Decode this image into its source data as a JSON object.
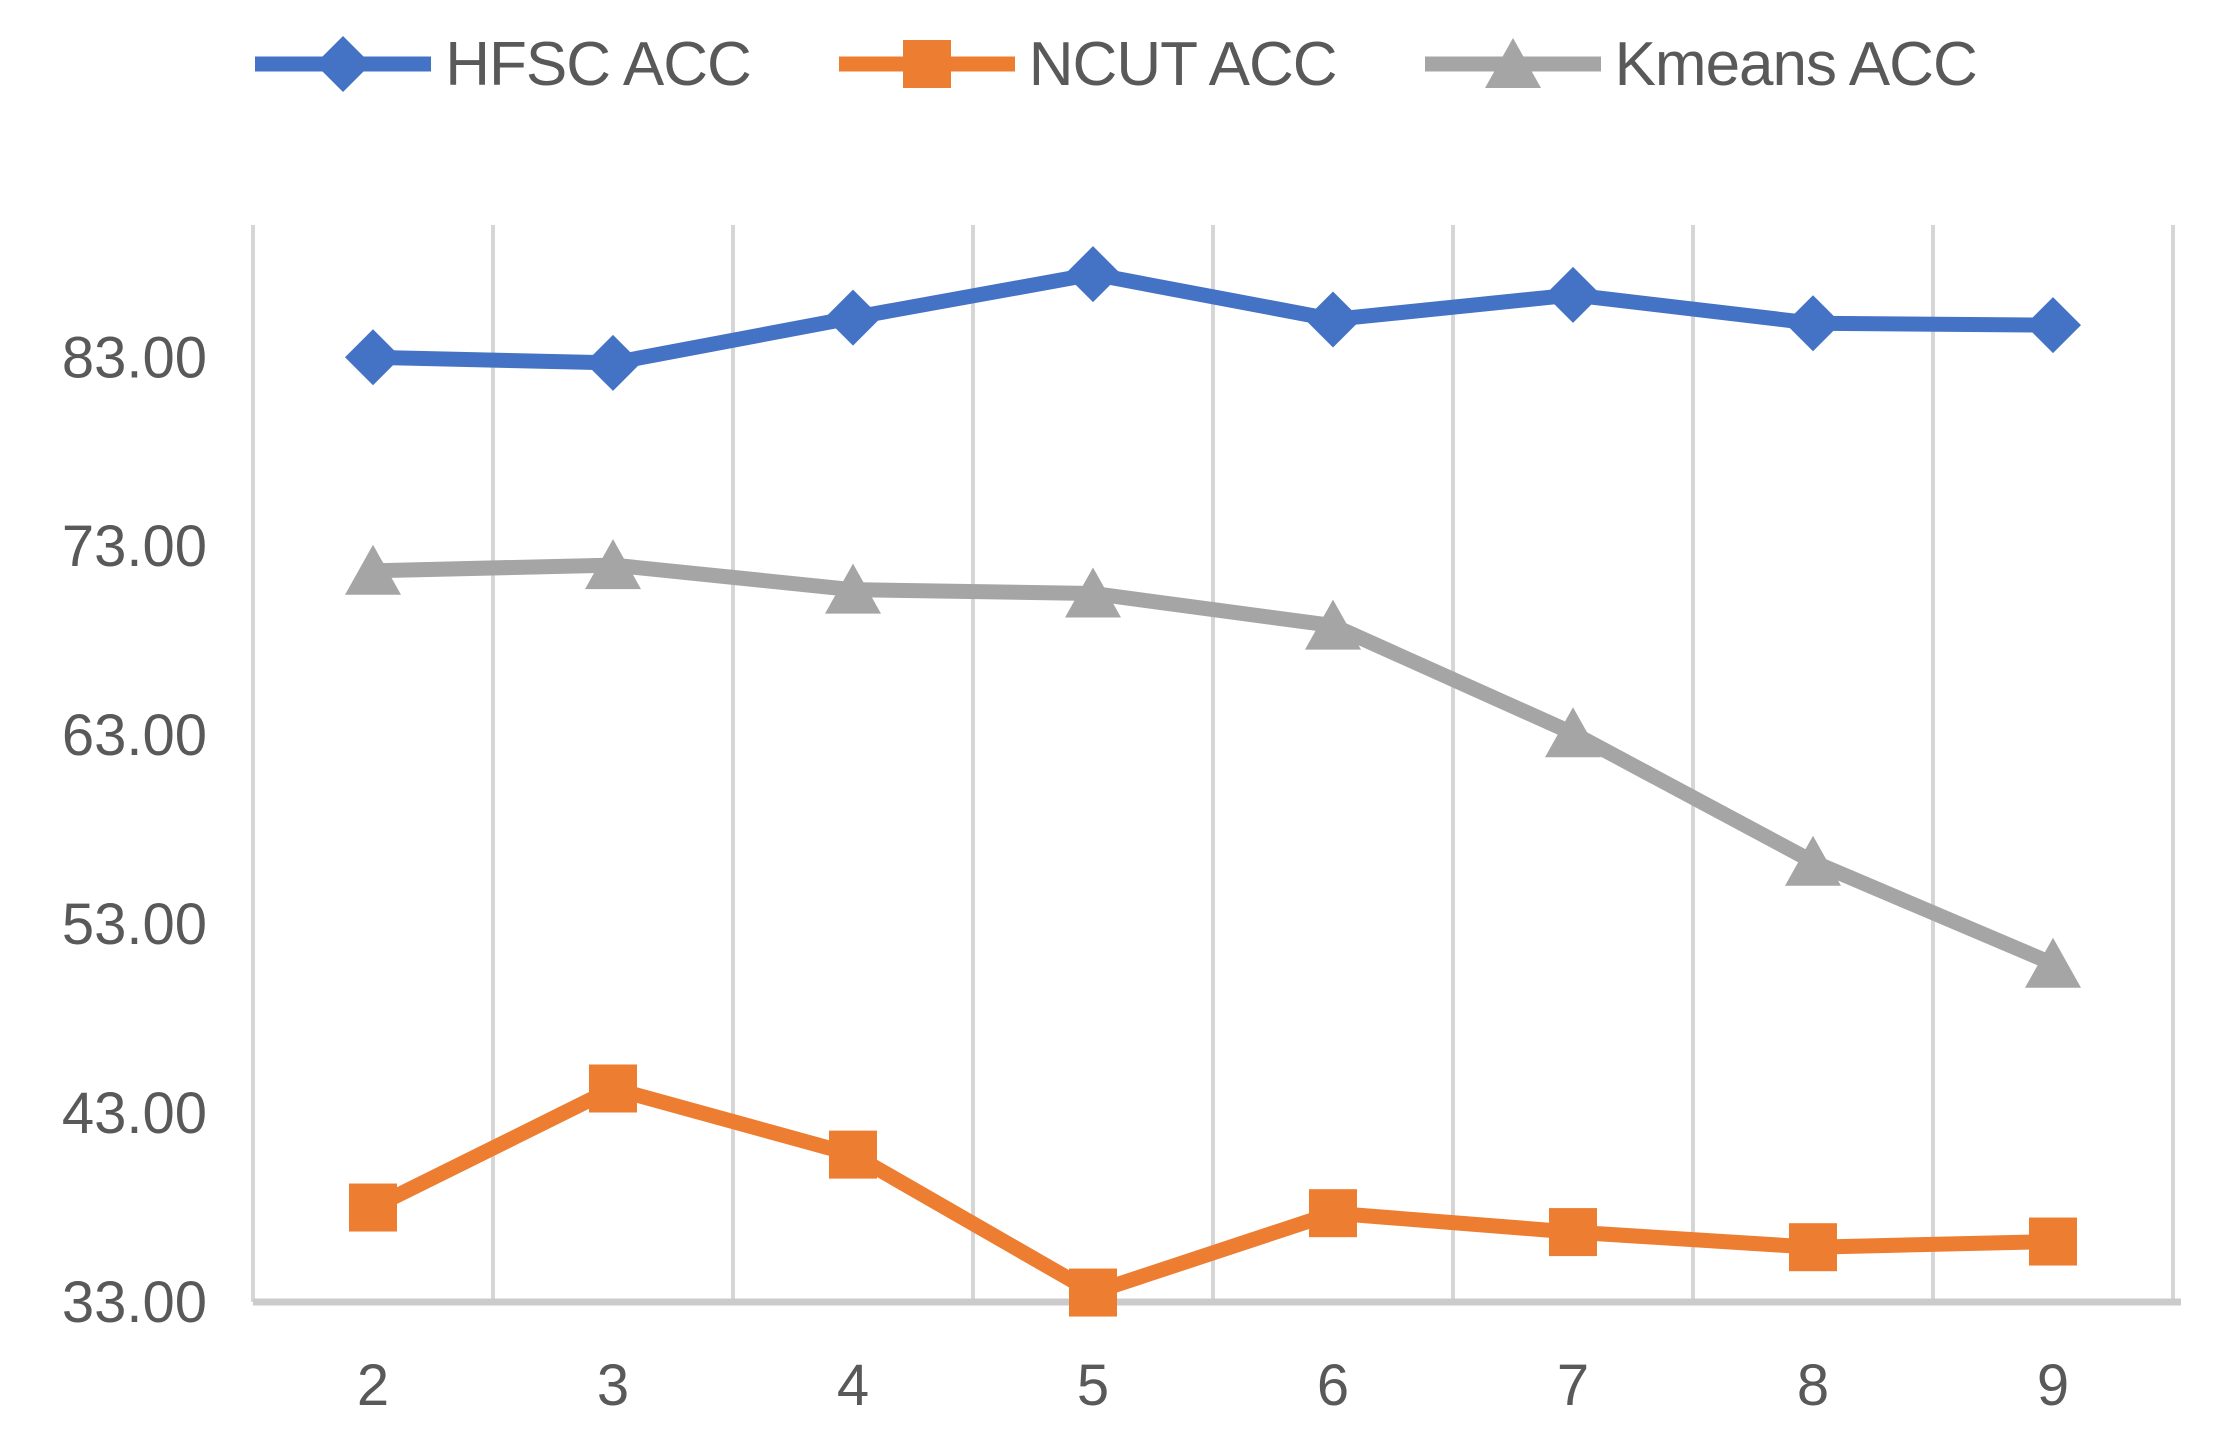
{
  "chart_data": {
    "type": "line",
    "categories": [
      2,
      3,
      4,
      5,
      6,
      7,
      8,
      9
    ],
    "xtick_labels": [
      "2",
      "3",
      "4",
      "5",
      "6",
      "7",
      "8",
      "9"
    ],
    "yticks": [
      33,
      43,
      53,
      63,
      73,
      83
    ],
    "ytick_labels": [
      "33.00",
      "43.00",
      "53.00",
      "63.00",
      "73.00",
      "83.00"
    ],
    "ylim": [
      33,
      90
    ],
    "grid": "vertical-gridlines-between-categories",
    "legend_position": "top",
    "series": [
      {
        "name": "HFSC ACC",
        "marker": "diamond",
        "color": "#4472C4",
        "values": [
          83.0,
          82.7,
          85.1,
          87.4,
          85.0,
          86.3,
          84.8,
          84.7
        ]
      },
      {
        "name": "NCUT ACC",
        "marker": "square",
        "color": "#ED7D31",
        "values": [
          38.0,
          44.3,
          40.8,
          33.5,
          37.7,
          36.7,
          35.9,
          36.2
        ]
      },
      {
        "name": "Kmeans ACC",
        "marker": "triangle",
        "color": "#A5A5A5",
        "values": [
          71.7,
          72.0,
          70.7,
          70.5,
          68.8,
          63.1,
          56.3,
          50.9
        ]
      }
    ],
    "colors": {
      "gridline": "#D6D6D6",
      "axis_line": "#CBCBCB",
      "tick_text": "#595959",
      "background": "#FFFFFF"
    }
  }
}
